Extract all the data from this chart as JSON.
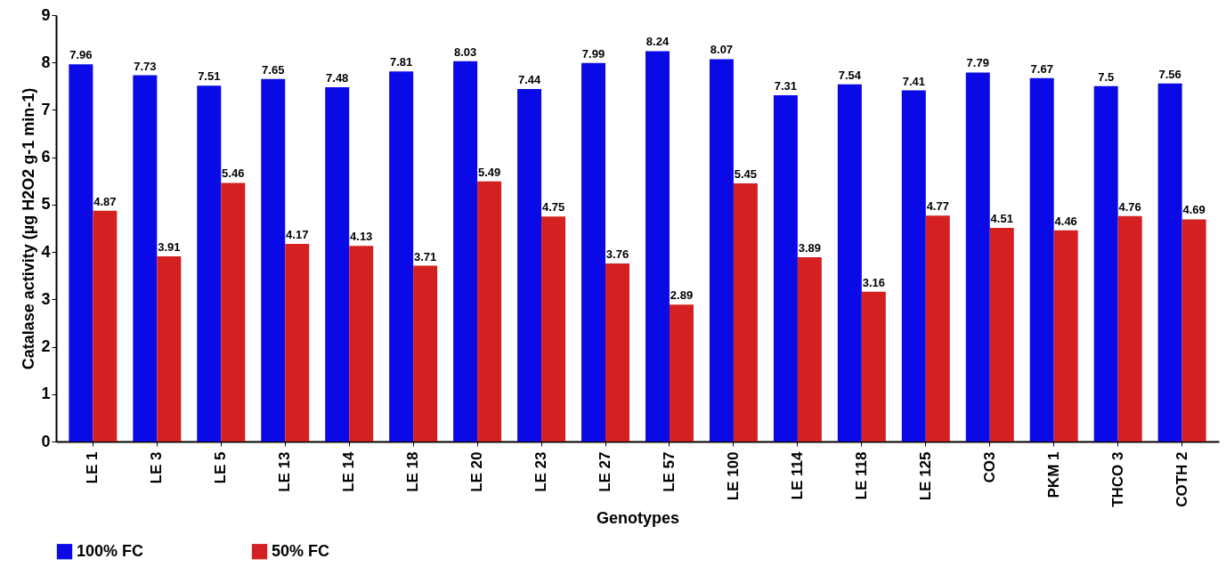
{
  "chart_data": {
    "type": "bar",
    "xlabel": "Genotypes",
    "ylabel": "Catalase activity (µg H2O2 g-1 min-1)",
    "categories": [
      "LE 1",
      "LE 3",
      "LE 5",
      "LE 13",
      "LE 14",
      "LE 18",
      "LE 20",
      "LE 23",
      "LE 27",
      "LE 57",
      "LE 100",
      "LE 114",
      "LE 118",
      "LE 125",
      "CO3",
      "PKM 1",
      "THCO 3",
      "COTH 2"
    ],
    "series": [
      {
        "name": "100% FC",
        "color": "#0a0ae6",
        "values": [
          7.96,
          7.73,
          7.51,
          7.65,
          7.48,
          7.81,
          8.03,
          7.44,
          7.99,
          8.24,
          8.07,
          7.31,
          7.54,
          7.41,
          7.79,
          7.67,
          7.5,
          7.56
        ]
      },
      {
        "name": "50% FC",
        "color": "#d42020",
        "values": [
          4.87,
          3.91,
          5.46,
          4.17,
          4.13,
          3.71,
          5.49,
          4.75,
          3.76,
          2.89,
          5.45,
          3.89,
          3.16,
          4.77,
          4.51,
          4.46,
          4.76,
          4.69
        ]
      }
    ],
    "ylim": [
      0,
      9
    ],
    "yticks": [
      0,
      1,
      2,
      3,
      4,
      5,
      6,
      7,
      8,
      9
    ],
    "grid": false,
    "legend": "bottom",
    "data_labels": true
  }
}
